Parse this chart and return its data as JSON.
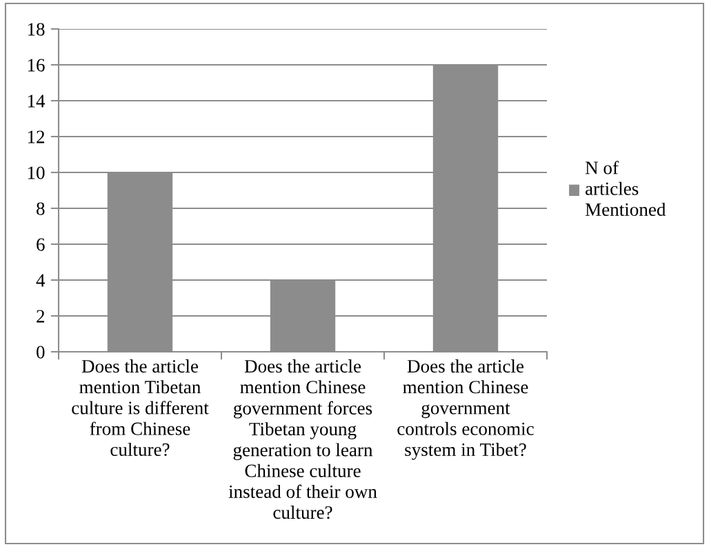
{
  "chart_data": {
    "type": "bar",
    "categories": [
      "Does the article mention Tibetan culture is different from Chinese culture?",
      "Does the article mention Chinese government forces Tibetan young generation to learn Chinese culture instead of their own culture?",
      "Does the article mention Chinese government controls economic system in Tibet?"
    ],
    "series": [
      {
        "name": "N of articles Mentioned",
        "color": "#8c8c8c",
        "values": [
          10,
          4,
          16
        ]
      }
    ],
    "ylim": [
      0,
      18
    ],
    "yticks": [
      0,
      2,
      4,
      6,
      8,
      10,
      12,
      14,
      16,
      18
    ],
    "grid": "y",
    "legend": "right"
  }
}
